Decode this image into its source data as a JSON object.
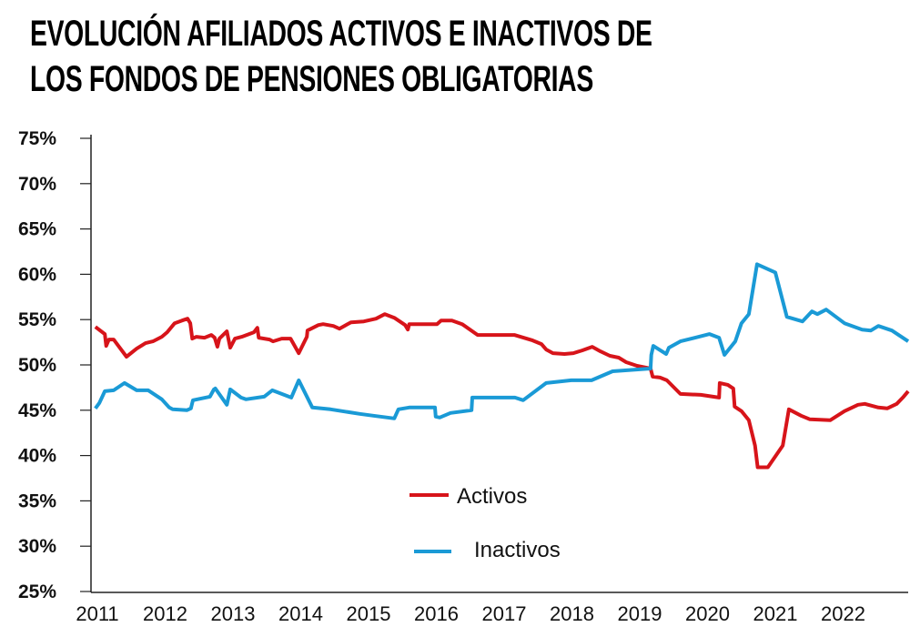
{
  "chart_data": {
    "type": "line",
    "title_lines": [
      "EVOLUCIÓN AFILIADOS ACTIVOS E INACTIVOS DE",
      "LOS FONDOS DE PENSIONES OBLIGATORIAS"
    ],
    "xlabel": "",
    "ylabel": "",
    "xlim": [
      2011,
      2023
    ],
    "ylim": [
      25,
      75
    ],
    "x_ticks": [
      "2011",
      "2012",
      "2013",
      "2014",
      "2015",
      "2016",
      "2017",
      "2018",
      "2019",
      "2020",
      "2021",
      "2022"
    ],
    "y_ticks": [
      "75%",
      "70%",
      "65%",
      "60%",
      "55%",
      "50%",
      "45%",
      "40%",
      "35%",
      "30%",
      "25%"
    ],
    "grid": false,
    "legend_position": "bottom-center",
    "series": [
      {
        "name": "Activos",
        "color": "#d7141a",
        "points": [
          [
            2010.97,
            54.2
          ],
          [
            2011.11,
            53.4
          ],
          [
            2011.13,
            52.1
          ],
          [
            2011.17,
            52.8
          ],
          [
            2011.24,
            52.8
          ],
          [
            2011.43,
            50.9
          ],
          [
            2011.58,
            51.8
          ],
          [
            2011.71,
            52.4
          ],
          [
            2011.82,
            52.6
          ],
          [
            2011.95,
            53.1
          ],
          [
            2012.03,
            53.6
          ],
          [
            2012.14,
            54.6
          ],
          [
            2012.25,
            54.9
          ],
          [
            2012.33,
            55.1
          ],
          [
            2012.37,
            54.6
          ],
          [
            2012.4,
            52.9
          ],
          [
            2012.46,
            53.1
          ],
          [
            2012.58,
            53.0
          ],
          [
            2012.68,
            53.3
          ],
          [
            2012.73,
            53.0
          ],
          [
            2012.77,
            52.0
          ],
          [
            2012.8,
            52.9
          ],
          [
            2012.91,
            53.7
          ],
          [
            2012.96,
            51.9
          ],
          [
            2013.03,
            52.9
          ],
          [
            2013.13,
            53.1
          ],
          [
            2013.31,
            53.6
          ],
          [
            2013.36,
            54.1
          ],
          [
            2013.38,
            53.0
          ],
          [
            2013.54,
            52.8
          ],
          [
            2013.59,
            52.6
          ],
          [
            2013.72,
            52.9
          ],
          [
            2013.85,
            52.9
          ],
          [
            2013.97,
            51.3
          ],
          [
            2014.09,
            53.1
          ],
          [
            2014.1,
            53.8
          ],
          [
            2014.26,
            54.4
          ],
          [
            2014.33,
            54.5
          ],
          [
            2014.48,
            54.3
          ],
          [
            2014.57,
            54.0
          ],
          [
            2014.74,
            54.7
          ],
          [
            2014.93,
            54.8
          ],
          [
            2015.11,
            55.1
          ],
          [
            2015.24,
            55.6
          ],
          [
            2015.38,
            55.2
          ],
          [
            2015.54,
            54.4
          ],
          [
            2015.58,
            53.9
          ],
          [
            2015.6,
            54.5
          ],
          [
            2016.01,
            54.5
          ],
          [
            2016.07,
            54.9
          ],
          [
            2016.23,
            54.9
          ],
          [
            2016.38,
            54.5
          ],
          [
            2016.61,
            53.3
          ],
          [
            2017.15,
            53.3
          ],
          [
            2017.42,
            52.7
          ],
          [
            2017.55,
            52.3
          ],
          [
            2017.62,
            51.7
          ],
          [
            2017.72,
            51.3
          ],
          [
            2017.89,
            51.2
          ],
          [
            2018.02,
            51.3
          ],
          [
            2018.15,
            51.6
          ],
          [
            2018.3,
            52.0
          ],
          [
            2018.42,
            51.5
          ],
          [
            2018.56,
            51.0
          ],
          [
            2018.69,
            50.8
          ],
          [
            2018.8,
            50.3
          ],
          [
            2018.96,
            49.9
          ],
          [
            2019.16,
            49.6
          ],
          [
            2019.19,
            48.7
          ],
          [
            2019.3,
            48.6
          ],
          [
            2019.4,
            48.3
          ],
          [
            2019.6,
            46.8
          ],
          [
            2019.9,
            46.7
          ],
          [
            2020.17,
            46.4
          ],
          [
            2020.18,
            48.0
          ],
          [
            2020.3,
            47.8
          ],
          [
            2020.38,
            47.4
          ],
          [
            2020.4,
            45.4
          ],
          [
            2020.5,
            44.9
          ],
          [
            2020.61,
            43.9
          ],
          [
            2020.7,
            41.1
          ],
          [
            2020.74,
            38.7
          ],
          [
            2020.89,
            38.7
          ],
          [
            2021.11,
            41.1
          ],
          [
            2021.2,
            45.1
          ],
          [
            2021.38,
            44.4
          ],
          [
            2021.51,
            44.0
          ],
          [
            2021.81,
            43.9
          ],
          [
            2022.02,
            44.9
          ],
          [
            2022.22,
            45.6
          ],
          [
            2022.32,
            45.7
          ],
          [
            2022.52,
            45.3
          ],
          [
            2022.65,
            45.2
          ],
          [
            2022.79,
            45.7
          ],
          [
            2022.88,
            46.4
          ],
          [
            2022.96,
            47.1
          ]
        ]
      },
      {
        "name": "Inactivos",
        "color": "#1a9ad6",
        "points": [
          [
            2010.97,
            45.2
          ],
          [
            2011.03,
            45.8
          ],
          [
            2011.11,
            47.1
          ],
          [
            2011.24,
            47.2
          ],
          [
            2011.4,
            48.0
          ],
          [
            2011.58,
            47.2
          ],
          [
            2011.75,
            47.2
          ],
          [
            2011.95,
            46.2
          ],
          [
            2012.06,
            45.3
          ],
          [
            2012.11,
            45.1
          ],
          [
            2012.32,
            45.0
          ],
          [
            2012.38,
            45.2
          ],
          [
            2012.41,
            46.1
          ],
          [
            2012.66,
            46.5
          ],
          [
            2012.72,
            47.3
          ],
          [
            2012.74,
            47.4
          ],
          [
            2012.91,
            45.6
          ],
          [
            2012.96,
            47.3
          ],
          [
            2013.12,
            46.4
          ],
          [
            2013.19,
            46.2
          ],
          [
            2013.46,
            46.5
          ],
          [
            2013.58,
            47.2
          ],
          [
            2013.86,
            46.4
          ],
          [
            2013.97,
            48.3
          ],
          [
            2014.17,
            45.3
          ],
          [
            2014.44,
            45.1
          ],
          [
            2014.87,
            44.6
          ],
          [
            2015.07,
            44.4
          ],
          [
            2015.38,
            44.1
          ],
          [
            2015.44,
            45.1
          ],
          [
            2015.6,
            45.3
          ],
          [
            2015.98,
            45.3
          ],
          [
            2015.99,
            44.3
          ],
          [
            2016.05,
            44.2
          ],
          [
            2016.21,
            44.7
          ],
          [
            2016.52,
            45.0
          ],
          [
            2016.53,
            46.4
          ],
          [
            2017.16,
            46.4
          ],
          [
            2017.28,
            46.1
          ],
          [
            2017.62,
            48.0
          ],
          [
            2017.99,
            48.3
          ],
          [
            2018.29,
            48.3
          ],
          [
            2018.6,
            49.3
          ],
          [
            2019.16,
            49.6
          ],
          [
            2019.17,
            51.1
          ],
          [
            2019.2,
            52.1
          ],
          [
            2019.39,
            51.2
          ],
          [
            2019.43,
            51.9
          ],
          [
            2019.6,
            52.6
          ],
          [
            2020.03,
            53.4
          ],
          [
            2020.17,
            53.0
          ],
          [
            2020.25,
            51.1
          ],
          [
            2020.41,
            52.6
          ],
          [
            2020.5,
            54.6
          ],
          [
            2020.61,
            55.6
          ],
          [
            2020.73,
            61.1
          ],
          [
            2021.0,
            60.2
          ],
          [
            2021.17,
            55.3
          ],
          [
            2021.4,
            54.8
          ],
          [
            2021.54,
            55.9
          ],
          [
            2021.62,
            55.6
          ],
          [
            2021.75,
            56.1
          ],
          [
            2022.02,
            54.6
          ],
          [
            2022.28,
            53.9
          ],
          [
            2022.41,
            53.8
          ],
          [
            2022.52,
            54.3
          ],
          [
            2022.72,
            53.8
          ],
          [
            2022.96,
            52.6
          ]
        ]
      }
    ]
  }
}
